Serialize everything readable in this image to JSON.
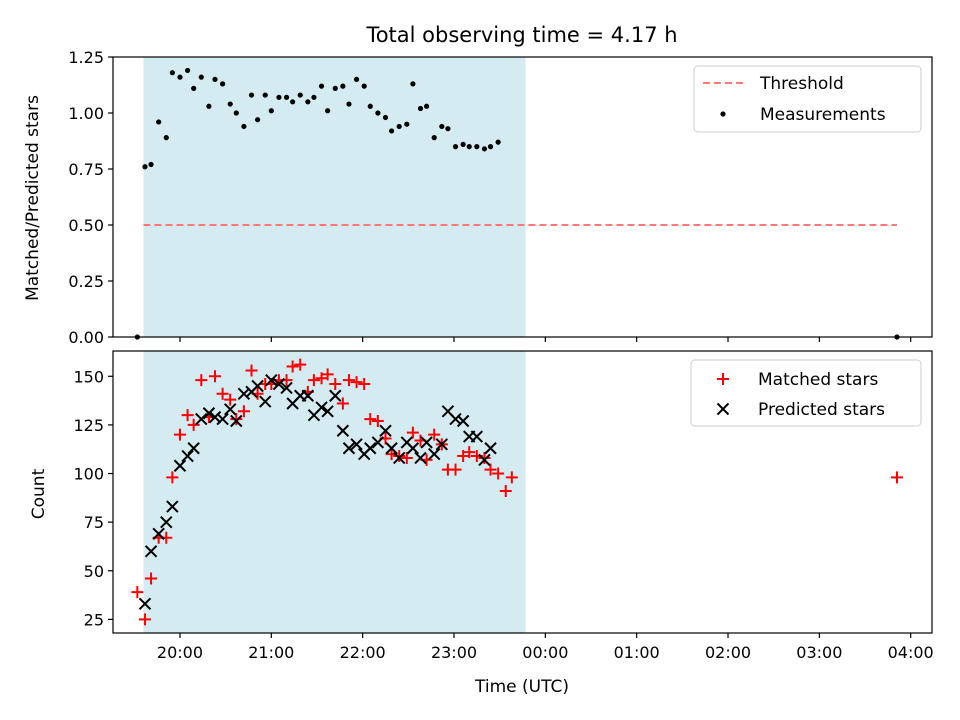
{
  "chart_data": [
    {
      "type": "scatter",
      "title": "Total observing time = 4.17 h",
      "xlabel": "",
      "ylabel": "Matched/Predicted stars",
      "ylim": [
        0,
        1.25
      ],
      "yticks": [
        "0.00",
        "0.25",
        "0.50",
        "0.75",
        "1.00",
        "1.25"
      ],
      "xlim": [
        "19:16",
        "04:14"
      ],
      "shaded_interval": [
        "19:36",
        "23:47"
      ],
      "shade_color": "#add8e6",
      "legend": "top-right",
      "threshold": {
        "name": "Threshold",
        "y": 0.5,
        "x_range": [
          "19:36",
          "03:51"
        ],
        "color": "#ff7777"
      },
      "series": [
        {
          "name": "Measurements",
          "color": "#000000",
          "marker": "dot",
          "x": [
            "19:32",
            "19:37",
            "19:41",
            "19:46",
            "19:51",
            "19:55",
            "20:00",
            "20:05",
            "20:09",
            "20:14",
            "20:19",
            "20:23",
            "20:28",
            "20:33",
            "20:37",
            "20:42",
            "20:47",
            "20:51",
            "20:56",
            "21:00",
            "21:05",
            "21:10",
            "21:14",
            "21:19",
            "21:24",
            "21:28",
            "21:33",
            "21:37",
            "21:42",
            "21:47",
            "21:51",
            "21:56",
            "22:01",
            "22:05",
            "22:10",
            "22:15",
            "22:19",
            "22:24",
            "22:29",
            "22:33",
            "22:38",
            "22:42",
            "22:47",
            "22:52",
            "22:56",
            "23:01",
            "23:06",
            "23:10",
            "23:15",
            "23:20",
            "23:24",
            "23:29",
            "23:34",
            "23:38",
            "23:43",
            "23:47",
            "03:51"
          ],
          "y": [
            0.0,
            0.76,
            0.77,
            0.96,
            0.89,
            1.18,
            1.16,
            1.19,
            1.11,
            1.16,
            1.03,
            1.15,
            1.13,
            1.04,
            1.0,
            0.94,
            1.08,
            0.97,
            1.08,
            1.01,
            1.07,
            1.07,
            1.05,
            1.08,
            1.05,
            1.07,
            1.12,
            1.01,
            1.11,
            1.12,
            1.04,
            1.15,
            1.12,
            1.03,
            1.0,
            0.98,
            0.92,
            0.94,
            0.95,
            1.13,
            1.02,
            1.03,
            0.89,
            0.94,
            0.93,
            0.85,
            0.86,
            0.85,
            0.85,
            0.84,
            0.85,
            0.87,
            null,
            null,
            null,
            null,
            0.0
          ]
        }
      ]
    },
    {
      "type": "scatter",
      "xlabel": "Time (UTC)",
      "ylabel": "Count",
      "ylim": [
        18,
        163
      ],
      "yticks": [
        "25",
        "50",
        "75",
        "100",
        "125",
        "150"
      ],
      "xlim": [
        "19:16",
        "04:14"
      ],
      "xticks": [
        "20:00",
        "21:00",
        "22:00",
        "23:00",
        "00:00",
        "01:00",
        "02:00",
        "03:00",
        "04:00"
      ],
      "shaded_interval": [
        "19:36",
        "23:47"
      ],
      "legend": "top-right",
      "series": [
        {
          "name": "Matched stars",
          "color": "#ff0000",
          "marker": "plus",
          "x": [
            "19:32",
            "19:37",
            "19:41",
            "19:46",
            "19:51",
            "19:55",
            "20:00",
            "20:05",
            "20:09",
            "20:14",
            "20:19",
            "20:23",
            "20:28",
            "20:33",
            "20:37",
            "20:42",
            "20:47",
            "20:51",
            "20:56",
            "21:00",
            "21:05",
            "21:10",
            "21:14",
            "21:19",
            "21:24",
            "21:28",
            "21:33",
            "21:37",
            "21:42",
            "21:47",
            "21:51",
            "21:56",
            "22:01",
            "22:05",
            "22:10",
            "22:15",
            "22:19",
            "22:24",
            "22:29",
            "22:33",
            "22:38",
            "22:42",
            "22:47",
            "22:52",
            "22:56",
            "23:01",
            "23:06",
            "23:10",
            "23:15",
            "23:20",
            "23:24",
            "23:29",
            "23:34",
            "23:38",
            "23:43",
            "23:47",
            "03:51"
          ],
          "y": [
            39,
            25,
            46,
            67,
            67,
            98,
            120,
            130,
            125,
            148,
            129,
            150,
            141,
            138,
            128,
            132,
            153,
            141,
            146,
            146,
            148,
            148,
            155,
            156,
            142,
            148,
            149,
            151,
            146,
            136,
            148,
            147,
            146,
            128,
            127,
            118,
            110,
            109,
            108,
            121,
            117,
            107,
            120,
            115,
            102,
            102,
            109,
            111,
            109,
            108,
            102,
            100,
            91,
            98,
            null,
            null,
            98
          ]
        },
        {
          "name": "Predicted stars",
          "color": "#000000",
          "marker": "x",
          "x": [
            "19:37",
            "19:41",
            "19:46",
            "19:51",
            "19:55",
            "20:00",
            "20:05",
            "20:09",
            "20:14",
            "20:19",
            "20:23",
            "20:28",
            "20:33",
            "20:37",
            "20:42",
            "20:47",
            "20:51",
            "20:56",
            "21:00",
            "21:05",
            "21:10",
            "21:14",
            "21:19",
            "21:24",
            "21:28",
            "21:33",
            "21:37",
            "21:42",
            "21:47",
            "21:51",
            "21:56",
            "22:01",
            "22:05",
            "22:10",
            "22:15",
            "22:19",
            "22:24",
            "22:29",
            "22:33",
            "22:38",
            "22:42",
            "22:47",
            "22:52",
            "22:56",
            "23:01",
            "23:06",
            "23:10",
            "23:15",
            "23:20",
            "23:24",
            "23:29",
            "23:34",
            "23:38",
            "23:43"
          ],
          "y": [
            33,
            60,
            69,
            75,
            83,
            104,
            109,
            113,
            128,
            131,
            129,
            128,
            133,
            127,
            141,
            142,
            145,
            137,
            148,
            146,
            144,
            136,
            140,
            140,
            130,
            134,
            132,
            140,
            122,
            113,
            115,
            110,
            113,
            116,
            122,
            113,
            108,
            116,
            113,
            108,
            116,
            110,
            115,
            132,
            128,
            127,
            119,
            119,
            107,
            113,
            null,
            null,
            null,
            null
          ]
        }
      ]
    }
  ]
}
